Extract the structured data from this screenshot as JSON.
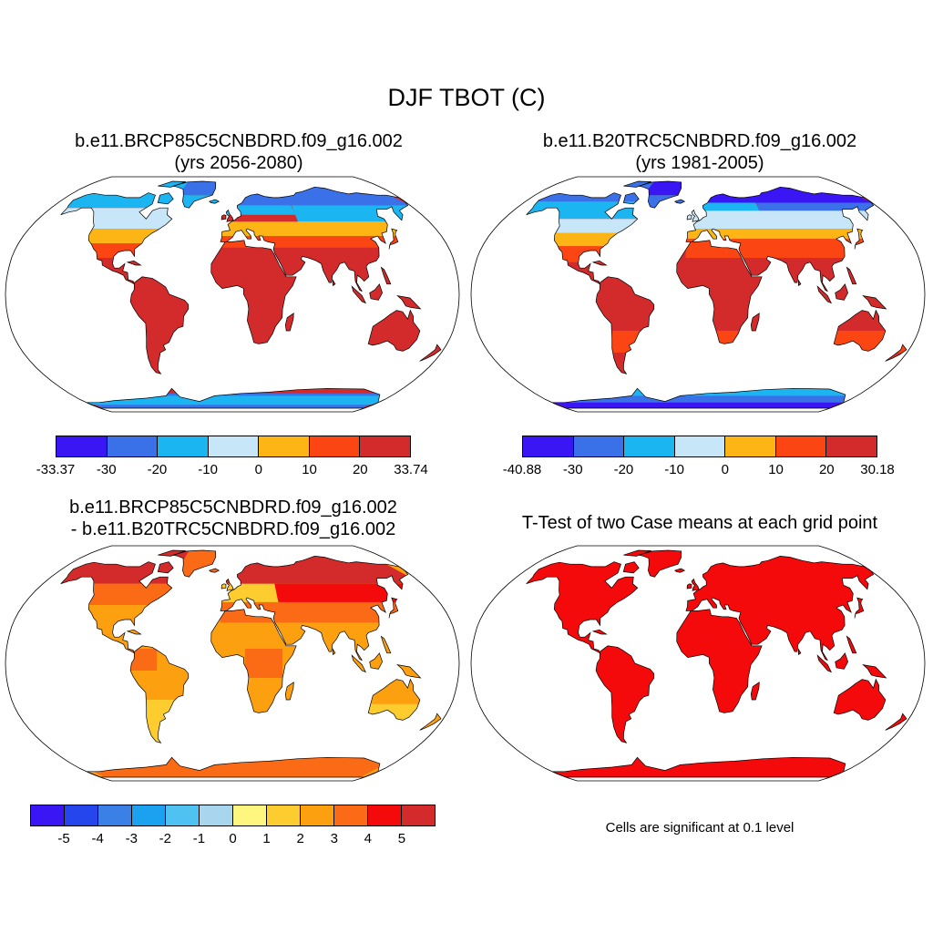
{
  "title": "DJF TBOT (C)",
  "panels": [
    {
      "title_line1": "b.e11.BRCP85C5CNBDRD.f09_g16.002",
      "title_line2": "(yrs 2056-2080)",
      "map_variant": "future",
      "colorbar": {
        "colors": [
          "#3a16f4",
          "#3a70e8",
          "#1bb6f2",
          "#c7e6f7",
          "#fdb515",
          "#fb4613",
          "#d32b2b"
        ],
        "labels": [
          "-33.37",
          "-30",
          "-20",
          "-10",
          "0",
          "10",
          "20",
          "33.74"
        ]
      }
    },
    {
      "title_line1": "b.e11.B20TRC5CNBDRD.f09_g16.002",
      "title_line2": "(yrs 1981-2005)",
      "map_variant": "historical",
      "colorbar": {
        "colors": [
          "#3a16f4",
          "#3a70e8",
          "#1bb6f2",
          "#c7e6f7",
          "#fdb515",
          "#fb4613",
          "#d32b2b"
        ],
        "labels": [
          "-40.88",
          "-30",
          "-20",
          "-10",
          "0",
          "10",
          "20",
          "30.18"
        ]
      }
    },
    {
      "title_line1": "b.e11.BRCP85C5CNBDRD.f09_g16.002",
      "title_line2": "- b.e11.B20TRC5CNBDRD.f09_g16.002",
      "map_variant": "difference",
      "colorbar": {
        "colors": [
          "#3a16f4",
          "#2446ec",
          "#3a80e6",
          "#1aa2f0",
          "#50c2f2",
          "#a8d6ee",
          "#fef67e",
          "#fdcc2e",
          "#fda010",
          "#fb6a14",
          "#f40a0a",
          "#d32b2b"
        ],
        "labels": [
          "-5",
          "-4",
          "-3",
          "-2",
          "-1",
          "0",
          "1",
          "2",
          "3",
          "4",
          "5"
        ]
      }
    },
    {
      "title_line1": "T-Test of two Case means at each grid point",
      "map_variant": "ttest",
      "note": "Cells are significant at 0.1 level"
    }
  ],
  "colors": {
    "significant": "#f40a0a",
    "ocean": "#ffffff"
  }
}
